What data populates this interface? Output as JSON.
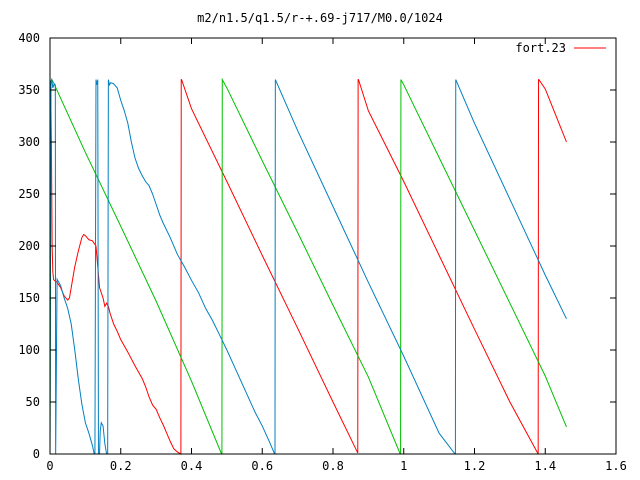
{
  "chart_data": {
    "type": "line",
    "title": "m2/n1.5/q1.5/r-+.69-j717/M0.0/1024",
    "xlabel": "",
    "ylabel": "",
    "xlim": [
      0,
      1.6
    ],
    "ylim": [
      0,
      400
    ],
    "xticks": [
      "0",
      "0.2",
      "0.4",
      "0.6",
      "0.8",
      "1",
      "1.2",
      "1.4",
      "1.6"
    ],
    "yticks": [
      "0",
      "50",
      "100",
      "150",
      "200",
      "250",
      "300",
      "350",
      "400"
    ],
    "grid": false,
    "legend": {
      "position": "top-right",
      "label": "fort.23",
      "color": "#ff0000"
    },
    "series": [
      {
        "name": "fort.23",
        "color": "#ff0000",
        "x": [
          0.0,
          0.002,
          0.004,
          0.006,
          0.008,
          0.01,
          0.012,
          0.02,
          0.03,
          0.04,
          0.05,
          0.055,
          0.06,
          0.07,
          0.08,
          0.09,
          0.095,
          0.1,
          0.105,
          0.11,
          0.12,
          0.13,
          0.14,
          0.15,
          0.155,
          0.16,
          0.165,
          0.17,
          0.175,
          0.18,
          0.19,
          0.2,
          0.22,
          0.24,
          0.26,
          0.27,
          0.28,
          0.29,
          0.3,
          0.31,
          0.32,
          0.33,
          0.34,
          0.35,
          0.36,
          0.37,
          0.371,
          0.372,
          0.4,
          0.5,
          0.6,
          0.7,
          0.8,
          0.87,
          0.871,
          0.872,
          0.9,
          1.0,
          1.1,
          1.2,
          1.3,
          1.38,
          1.381,
          1.382,
          1.4,
          1.46
        ],
        "y": [
          355,
          352,
          300,
          200,
          175,
          168,
          167,
          165,
          160,
          152,
          148,
          150,
          160,
          180,
          195,
          208,
          211,
          210,
          208,
          206,
          205,
          200,
          160,
          150,
          142,
          145,
          142,
          135,
          130,
          125,
          118,
          110,
          98,
          85,
          73,
          65,
          55,
          47,
          43,
          35,
          28,
          20,
          12,
          5,
          2,
          0,
          360,
          360,
          332,
          262,
          191,
          121,
          50,
          1,
          360,
          360,
          330,
          262,
          191,
          120,
          50,
          0,
          360,
          360,
          351,
          300
        ]
      },
      {
        "name": "",
        "color": "#00c000",
        "x": [
          0.0,
          0.003,
          0.005,
          0.01,
          0.1,
          0.2,
          0.3,
          0.4,
          0.485,
          0.486,
          0.487,
          0.5,
          0.6,
          0.7,
          0.8,
          0.9,
          0.99,
          0.991,
          0.992,
          1.0,
          1.1,
          1.2,
          1.3,
          1.4,
          1.46
        ],
        "y": [
          0,
          355,
          360,
          357,
          290,
          219,
          147,
          70,
          0,
          0,
          360,
          352,
          282,
          213,
          143,
          74,
          0,
          0,
          360,
          355,
          285,
          215,
          145,
          75,
          26
        ]
      },
      {
        "name": "",
        "color": "#0080c0",
        "x": [
          0.0,
          0.002,
          0.005,
          0.008,
          0.012,
          0.015,
          0.016,
          0.02,
          0.03,
          0.04,
          0.05,
          0.06,
          0.07,
          0.08,
          0.09,
          0.1,
          0.11,
          0.12,
          0.125,
          0.127,
          0.13,
          0.133,
          0.135,
          0.137,
          0.14,
          0.142,
          0.145,
          0.15,
          0.155,
          0.16,
          0.163,
          0.165,
          0.168,
          0.172,
          0.18,
          0.19,
          0.2,
          0.21,
          0.22,
          0.23,
          0.24,
          0.25,
          0.26,
          0.27,
          0.28,
          0.29,
          0.3,
          0.31,
          0.32,
          0.34,
          0.36,
          0.38,
          0.4,
          0.42,
          0.44,
          0.46,
          0.48,
          0.5,
          0.52,
          0.54,
          0.56,
          0.58,
          0.6,
          0.62,
          0.635,
          0.636,
          0.637,
          0.7,
          0.8,
          0.9,
          1.0,
          1.1,
          1.145,
          1.146,
          1.147,
          1.2,
          1.3,
          1.4,
          1.46
        ],
        "y": [
          0,
          358,
          360,
          352,
          356,
          355,
          0,
          168,
          162,
          150,
          140,
          125,
          100,
          72,
          48,
          30,
          20,
          8,
          0,
          0,
          360,
          355,
          360,
          0,
          0,
          22,
          30,
          27,
          10,
          0,
          0,
          360,
          355,
          357,
          356,
          352,
          340,
          330,
          318,
          300,
          285,
          275,
          268,
          262,
          258,
          250,
          240,
          230,
          222,
          208,
          192,
          180,
          167,
          155,
          140,
          128,
          114,
          100,
          85,
          70,
          55,
          40,
          27,
          12,
          0,
          0,
          360,
          311,
          238,
          165,
          94,
          20,
          0,
          0,
          360,
          318,
          245,
          172,
          130
        ]
      }
    ]
  }
}
